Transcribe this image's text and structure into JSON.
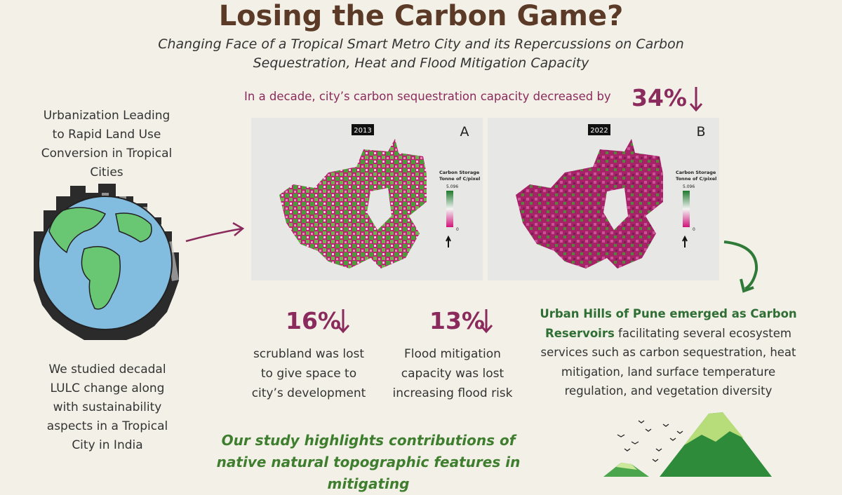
{
  "header": {
    "title": "Losing the Carbon Game?",
    "subtitle": "Changing Face of a Tropical Smart Metro City and its Repercussions on Carbon Sequestration, Heat and Flood Mitigation Capacity"
  },
  "left": {
    "intro": "Urbanization Leading to Rapid Land Use Conversion in Tropical Cities",
    "study": "We studied decadal LULC change along with sustainability aspects in a Tropical City in India"
  },
  "headline": {
    "text": "In a decade, city’s carbon sequestration capacity decreased by",
    "figure": "34%"
  },
  "maps": [
    {
      "year": "2013",
      "panel": "A",
      "legend_title": "Carbon Storage",
      "legend_unit": "Tonne of C/pixel",
      "max": "5.096",
      "min": "0"
    },
    {
      "year": "2022",
      "panel": "B",
      "legend_title": "Carbon Storage",
      "legend_unit": "Tonne of C/pixel",
      "max": "5.096",
      "min": "0"
    }
  ],
  "stats": [
    {
      "figure": "16%",
      "text": "scrubland was lost to give space to city’s development"
    },
    {
      "figure": "13%",
      "text": "Flood mitigation capacity was lost increasing flood risk"
    }
  ],
  "hills": {
    "highlight": "Urban Hills of Pune emerged as Carbon Reservoirs",
    "text": "facilitating several ecosystem services such as carbon sequestration, heat mitigation, land surface temperature regulation, and vegetation diversity"
  },
  "conclusion": "Our study highlights contributions of native natural topographic features in mitigating"
}
